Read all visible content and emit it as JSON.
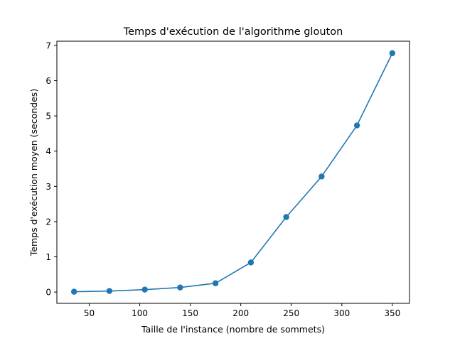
{
  "chart_data": {
    "type": "line",
    "title": "Temps d'exécution de l'algorithme glouton",
    "xlabel": "Taille de l'instance (nombre de sommets)",
    "ylabel": "Temps d'exécution moyen (secondes)",
    "xlim": [
      18,
      367
    ],
    "ylim": [
      -0.32,
      7.12
    ],
    "xticks": [
      50,
      100,
      150,
      200,
      250,
      300,
      350
    ],
    "yticks": [
      0,
      1,
      2,
      3,
      4,
      5,
      6,
      7
    ],
    "grid": false,
    "legend": "none",
    "series": [
      {
        "color": "#1f77b4",
        "marker": "circle",
        "x": [
          35,
          70,
          105,
          140,
          175,
          210,
          245,
          280,
          315,
          350
        ],
        "y": [
          0.01,
          0.03,
          0.07,
          0.13,
          0.25,
          0.84,
          2.13,
          3.28,
          4.73,
          6.78
        ]
      }
    ]
  }
}
